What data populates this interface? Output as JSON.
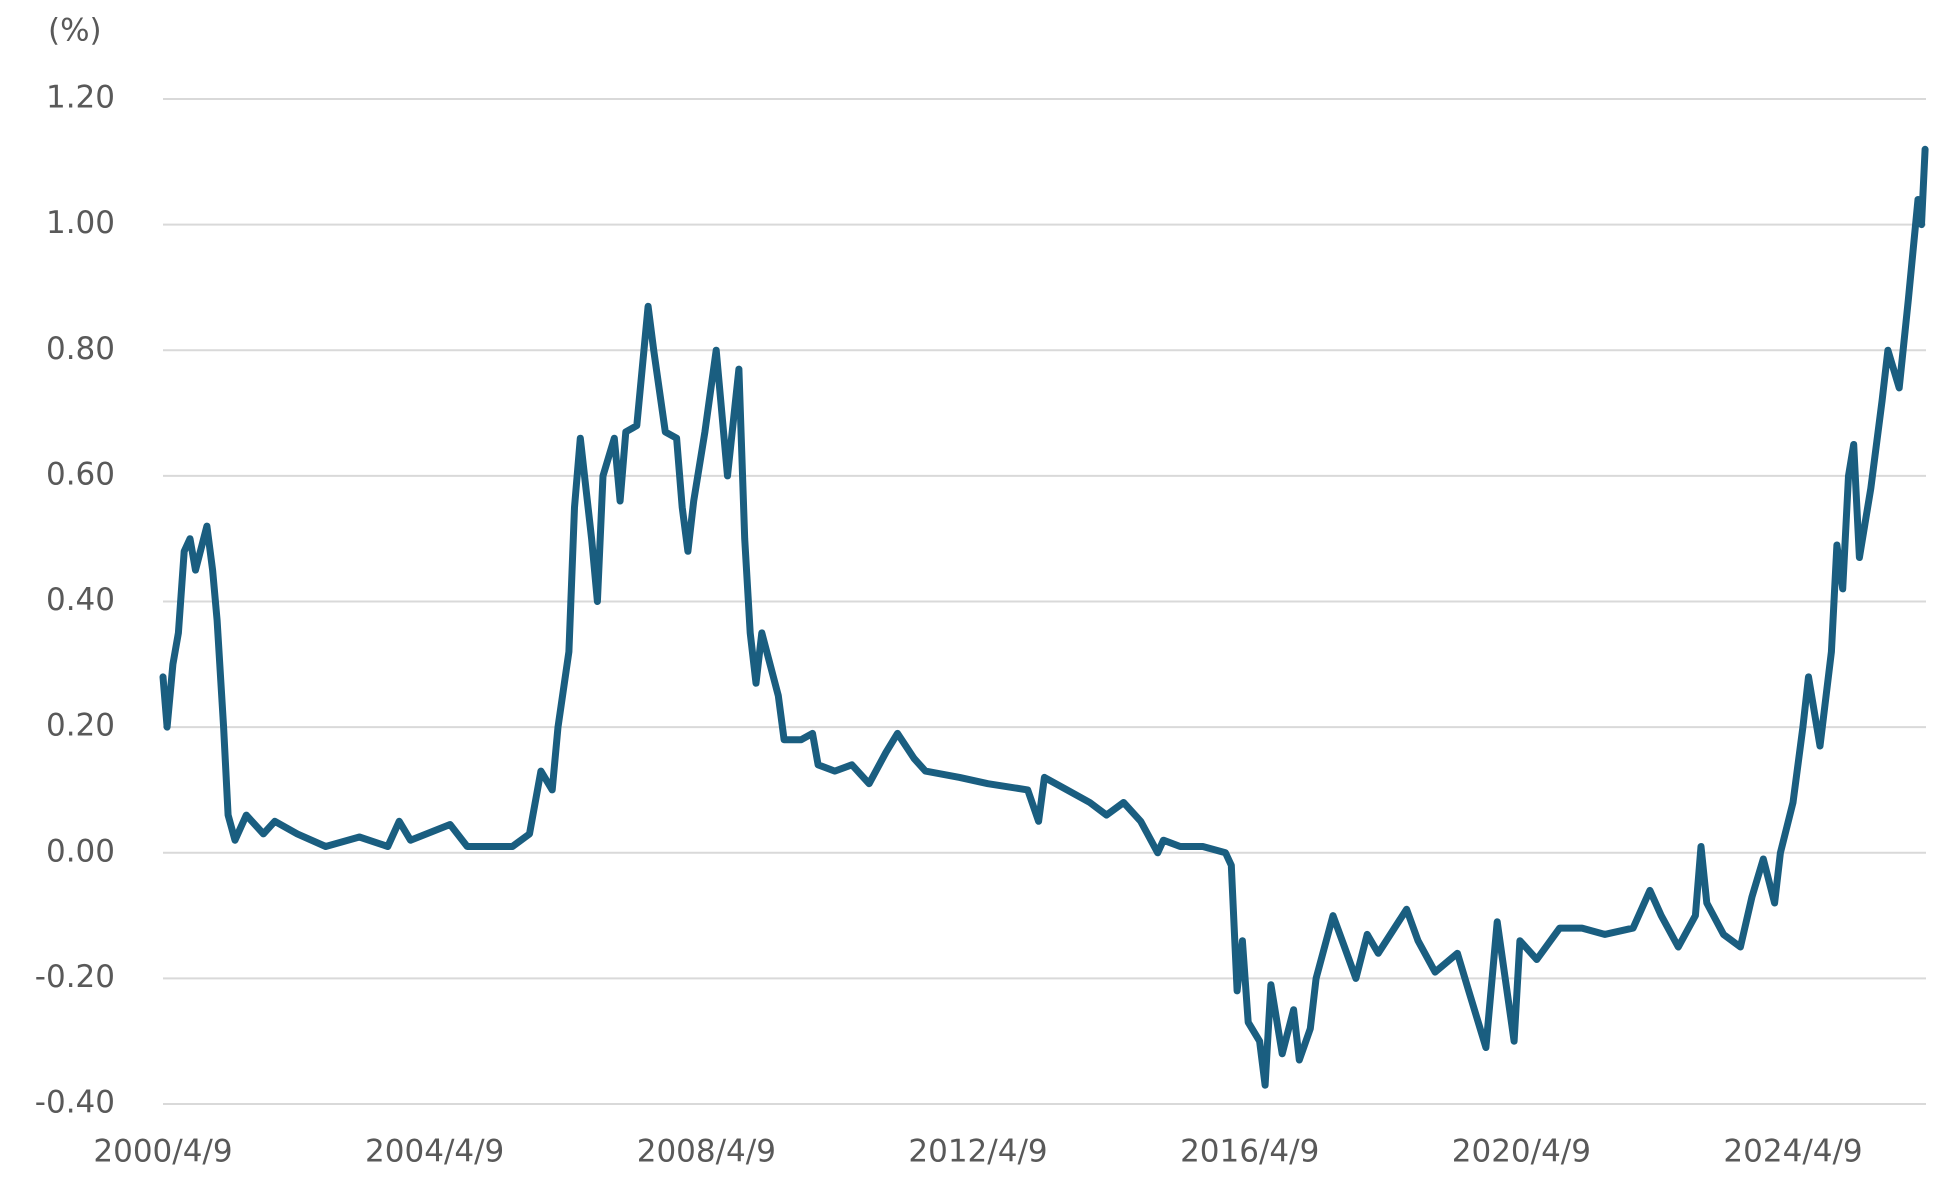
{
  "chart_data": {
    "type": "line",
    "ylabel": "(%)",
    "x": [
      "2000/4/9",
      "2000/5/1",
      "2000/6/1",
      "2000/7/1",
      "2000/8/1",
      "2000/9/1",
      "2000/10/1",
      "2000/12/1",
      "2001/1/1",
      "2001/1/25",
      "2001/3/1",
      "2001/3/25",
      "2001/5/1",
      "2001/7/1",
      "2001/10/1",
      "2001/12/1",
      "2002/4/1",
      "2002/9/1",
      "2003/3/1",
      "2003/8/1",
      "2003/10/1",
      "2003/12/1",
      "2004/7/1",
      "2004/10/1",
      "2005/6/1",
      "2005/9/1",
      "2005/11/1",
      "2006/1/1",
      "2006/2/1",
      "2006/4/1",
      "2006/5/1",
      "2006/6/1",
      "2006/8/1",
      "2006/9/1",
      "2006/10/1",
      "2006/12/1",
      "2007/1/1",
      "2007/2/1",
      "2007/4/1",
      "2007/6/1",
      "2007/7/1",
      "2007/9/1",
      "2007/11/1",
      "2007/12/1",
      "2008/1/1",
      "2008/2/1",
      "2008/4/1",
      "2008/6/1",
      "2008/8/1",
      "2008/10/1",
      "2008/11/1",
      "2008/12/1",
      "2009/1/1",
      "2009/2/1",
      "2009/5/1",
      "2009/6/1",
      "2009/9/1",
      "2009/11/1",
      "2009/12/1",
      "2010/3/1",
      "2010/6/1",
      "2010/9/1",
      "2010/12/1",
      "2011/2/1",
      "2011/5/1",
      "2011/7/1",
      "2012/1/1",
      "2012/6/1",
      "2013/1/1",
      "2013/3/1",
      "2013/4/1",
      "2013/8/1",
      "2013/12/1",
      "2014/3/1",
      "2014/6/1",
      "2014/9/1",
      "2014/12/1",
      "2015/1/1",
      "2015/4/1",
      "2015/8/1",
      "2015/12/1",
      "2016/1/1",
      "2016/2/1",
      "2016/3/1",
      "2016/4/1",
      "2016/6/1",
      "2016/7/1",
      "2016/8/1",
      "2016/10/1",
      "2016/12/1",
      "2017/1/1",
      "2017/3/1",
      "2017/4/1",
      "2017/7/1",
      "2017/9/1",
      "2017/11/1",
      "2018/1/1",
      "2018/3/1",
      "2018/8/1",
      "2018/10/1",
      "2019/1/1",
      "2019/5/1",
      "2019/7/1",
      "2019/10/1",
      "2019/12/1",
      "2020/3/1",
      "2020/4/1",
      "2020/7/1",
      "2020/11/1",
      "2021/3/1",
      "2021/7/1",
      "2021/12/1",
      "2022/3/1",
      "2022/5/1",
      "2022/8/1",
      "2022/11/1",
      "2022/12/1",
      "2023/1/1",
      "2023/4/1",
      "2023/7/1",
      "2023/9/1",
      "2023/11/1",
      "2024/1/1",
      "2024/2/1",
      "2024/4/9",
      "2024/6/1",
      "2024/7/1",
      "2024/9/1",
      "2024/11/1",
      "2024/12/1",
      "2025/1/1",
      "2025/2/1",
      "2025/3/1",
      "2025/4/1",
      "2025/6/1",
      "2025/8/1",
      "2025/9/1",
      "2025/11/1",
      "2025/12/20",
      "2026/2/10",
      "2026/3/1",
      "2026/3/20"
    ],
    "series": [
      {
        "color": "#1a5e80",
        "values": [
          0.28,
          0.2,
          0.3,
          0.35,
          0.48,
          0.5,
          0.45,
          0.52,
          0.45,
          0.37,
          0.2,
          0.06,
          0.02,
          0.06,
          0.03,
          0.05,
          0.03,
          0.01,
          0.025,
          0.01,
          0.05,
          0.02,
          0.045,
          0.01,
          0.01,
          0.03,
          0.13,
          0.1,
          0.2,
          0.32,
          0.55,
          0.66,
          0.5,
          0.4,
          0.6,
          0.66,
          0.56,
          0.67,
          0.68,
          0.87,
          0.8,
          0.67,
          0.66,
          0.55,
          0.48,
          0.56,
          0.67,
          0.8,
          0.6,
          0.77,
          0.5,
          0.35,
          0.27,
          0.35,
          0.25,
          0.18,
          0.18,
          0.19,
          0.14,
          0.13,
          0.14,
          0.11,
          0.16,
          0.19,
          0.15,
          0.13,
          0.12,
          0.11,
          0.1,
          0.05,
          0.12,
          0.1,
          0.08,
          0.06,
          0.08,
          0.05,
          0.0,
          0.02,
          0.01,
          0.01,
          0.0,
          -0.02,
          -0.22,
          -0.14,
          -0.27,
          -0.3,
          -0.37,
          -0.21,
          -0.32,
          -0.25,
          -0.33,
          -0.28,
          -0.2,
          -0.1,
          -0.15,
          -0.2,
          -0.13,
          -0.16,
          -0.09,
          -0.14,
          -0.19,
          -0.16,
          -0.22,
          -0.31,
          -0.11,
          -0.3,
          -0.14,
          -0.17,
          -0.12,
          -0.12,
          -0.13,
          -0.12,
          -0.06,
          -0.1,
          -0.15,
          -0.1,
          0.01,
          -0.08,
          -0.13,
          -0.15,
          -0.07,
          -0.01,
          -0.08,
          0.0,
          0.08,
          0.2,
          0.28,
          0.17,
          0.32,
          0.49,
          0.42,
          0.6,
          0.65,
          0.47,
          0.58,
          0.72,
          0.8,
          0.74,
          0.88,
          1.04,
          1.0,
          1.12
        ]
      }
    ],
    "xlim": [
      "2000/4/9",
      "2026/3/25"
    ],
    "xticks": [
      "2000/4/9",
      "2004/4/9",
      "2008/4/9",
      "2012/4/9",
      "2016/4/9",
      "2020/4/9",
      "2024/4/9"
    ],
    "ylim": [
      -0.4,
      1.2
    ],
    "yticks": [
      {
        "value": -0.4,
        "label": "-0.40"
      },
      {
        "value": -0.2,
        "label": "-0.20"
      },
      {
        "value": 0,
        "label": "0.00"
      },
      {
        "value": 0.2,
        "label": "0.20"
      },
      {
        "value": 0.4,
        "label": "0.40"
      },
      {
        "value": 0.6,
        "label": "0.60"
      },
      {
        "value": 0.8,
        "label": "0.80"
      },
      {
        "value": 1.0,
        "label": "1.00"
      },
      {
        "value": 1.2,
        "label": "1.20"
      }
    ],
    "grid": true
  }
}
